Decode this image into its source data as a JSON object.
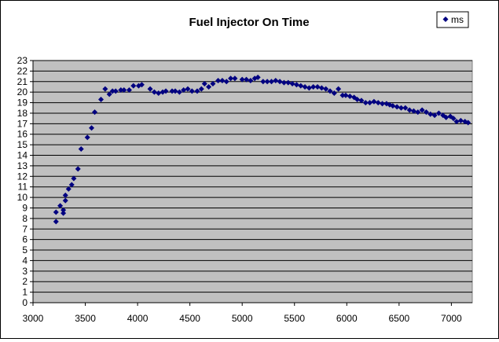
{
  "chart_data": {
    "type": "scatter",
    "title": "Fuel Injector On Time",
    "xlabel": "",
    "ylabel": "",
    "xlim": [
      3000,
      7200
    ],
    "ylim": [
      0,
      23
    ],
    "x_ticks": [
      3000,
      3500,
      4000,
      4500,
      5000,
      5500,
      6000,
      6500,
      7000
    ],
    "y_ticks": [
      0,
      1,
      2,
      3,
      4,
      5,
      6,
      7,
      8,
      9,
      10,
      11,
      12,
      13,
      14,
      15,
      16,
      17,
      18,
      19,
      20,
      21,
      22,
      23
    ],
    "grid": "horizontal",
    "legend_position": "top-right",
    "colors": {
      "marker": "#000080",
      "plot_bg": "#c0c0c0",
      "grid": "#000000"
    },
    "series": [
      {
        "name": "ms",
        "marker": "diamond",
        "points": [
          [
            3220,
            7.7
          ],
          [
            3220,
            8.6
          ],
          [
            3260,
            9.2
          ],
          [
            3290,
            8.5
          ],
          [
            3290,
            8.8
          ],
          [
            3310,
            9.7
          ],
          [
            3310,
            10.2
          ],
          [
            3340,
            10.8
          ],
          [
            3370,
            11.2
          ],
          [
            3390,
            11.8
          ],
          [
            3430,
            12.7
          ],
          [
            3460,
            14.6
          ],
          [
            3520,
            15.7
          ],
          [
            3560,
            16.6
          ],
          [
            3590,
            18.1
          ],
          [
            3650,
            19.3
          ],
          [
            3690,
            20.3
          ],
          [
            3730,
            19.8
          ],
          [
            3760,
            20.1
          ],
          [
            3790,
            20.1
          ],
          [
            3840,
            20.2
          ],
          [
            3870,
            20.2
          ],
          [
            3920,
            20.2
          ],
          [
            3960,
            20.6
          ],
          [
            4010,
            20.6
          ],
          [
            4040,
            20.7
          ],
          [
            4120,
            20.3
          ],
          [
            4160,
            20.0
          ],
          [
            4200,
            19.9
          ],
          [
            4240,
            20.0
          ],
          [
            4270,
            20.1
          ],
          [
            4330,
            20.1
          ],
          [
            4360,
            20.1
          ],
          [
            4400,
            20.0
          ],
          [
            4440,
            20.2
          ],
          [
            4480,
            20.3
          ],
          [
            4520,
            20.1
          ],
          [
            4570,
            20.1
          ],
          [
            4610,
            20.3
          ],
          [
            4640,
            20.8
          ],
          [
            4680,
            20.5
          ],
          [
            4720,
            20.8
          ],
          [
            4770,
            21.1
          ],
          [
            4810,
            21.1
          ],
          [
            4850,
            21.0
          ],
          [
            4890,
            21.3
          ],
          [
            4930,
            21.3
          ],
          [
            5000,
            21.2
          ],
          [
            5040,
            21.2
          ],
          [
            5080,
            21.1
          ],
          [
            5120,
            21.3
          ],
          [
            5150,
            21.4
          ],
          [
            5200,
            21.0
          ],
          [
            5240,
            21.0
          ],
          [
            5280,
            21.0
          ],
          [
            5320,
            21.1
          ],
          [
            5360,
            21.0
          ],
          [
            5400,
            20.9
          ],
          [
            5440,
            20.9
          ],
          [
            5480,
            20.8
          ],
          [
            5520,
            20.7
          ],
          [
            5560,
            20.6
          ],
          [
            5600,
            20.5
          ],
          [
            5640,
            20.4
          ],
          [
            5680,
            20.5
          ],
          [
            5720,
            20.5
          ],
          [
            5760,
            20.4
          ],
          [
            5800,
            20.3
          ],
          [
            5840,
            20.1
          ],
          [
            5880,
            19.9
          ],
          [
            5920,
            20.3
          ],
          [
            5960,
            19.7
          ],
          [
            5990,
            19.7
          ],
          [
            6030,
            19.6
          ],
          [
            6070,
            19.5
          ],
          [
            6100,
            19.3
          ],
          [
            6140,
            19.2
          ],
          [
            6180,
            19.0
          ],
          [
            6220,
            19.0
          ],
          [
            6260,
            19.1
          ],
          [
            6300,
            19.0
          ],
          [
            6340,
            18.9
          ],
          [
            6380,
            18.9
          ],
          [
            6410,
            18.8
          ],
          [
            6440,
            18.7
          ],
          [
            6480,
            18.6
          ],
          [
            6520,
            18.5
          ],
          [
            6560,
            18.5
          ],
          [
            6600,
            18.3
          ],
          [
            6640,
            18.2
          ],
          [
            6680,
            18.1
          ],
          [
            6720,
            18.3
          ],
          [
            6760,
            18.1
          ],
          [
            6800,
            17.9
          ],
          [
            6840,
            17.8
          ],
          [
            6880,
            18.0
          ],
          [
            6920,
            17.8
          ],
          [
            6950,
            17.6
          ],
          [
            6990,
            17.7
          ],
          [
            7020,
            17.5
          ],
          [
            7050,
            17.2
          ],
          [
            7090,
            17.3
          ],
          [
            7130,
            17.2
          ],
          [
            7160,
            17.1
          ]
        ]
      }
    ]
  }
}
